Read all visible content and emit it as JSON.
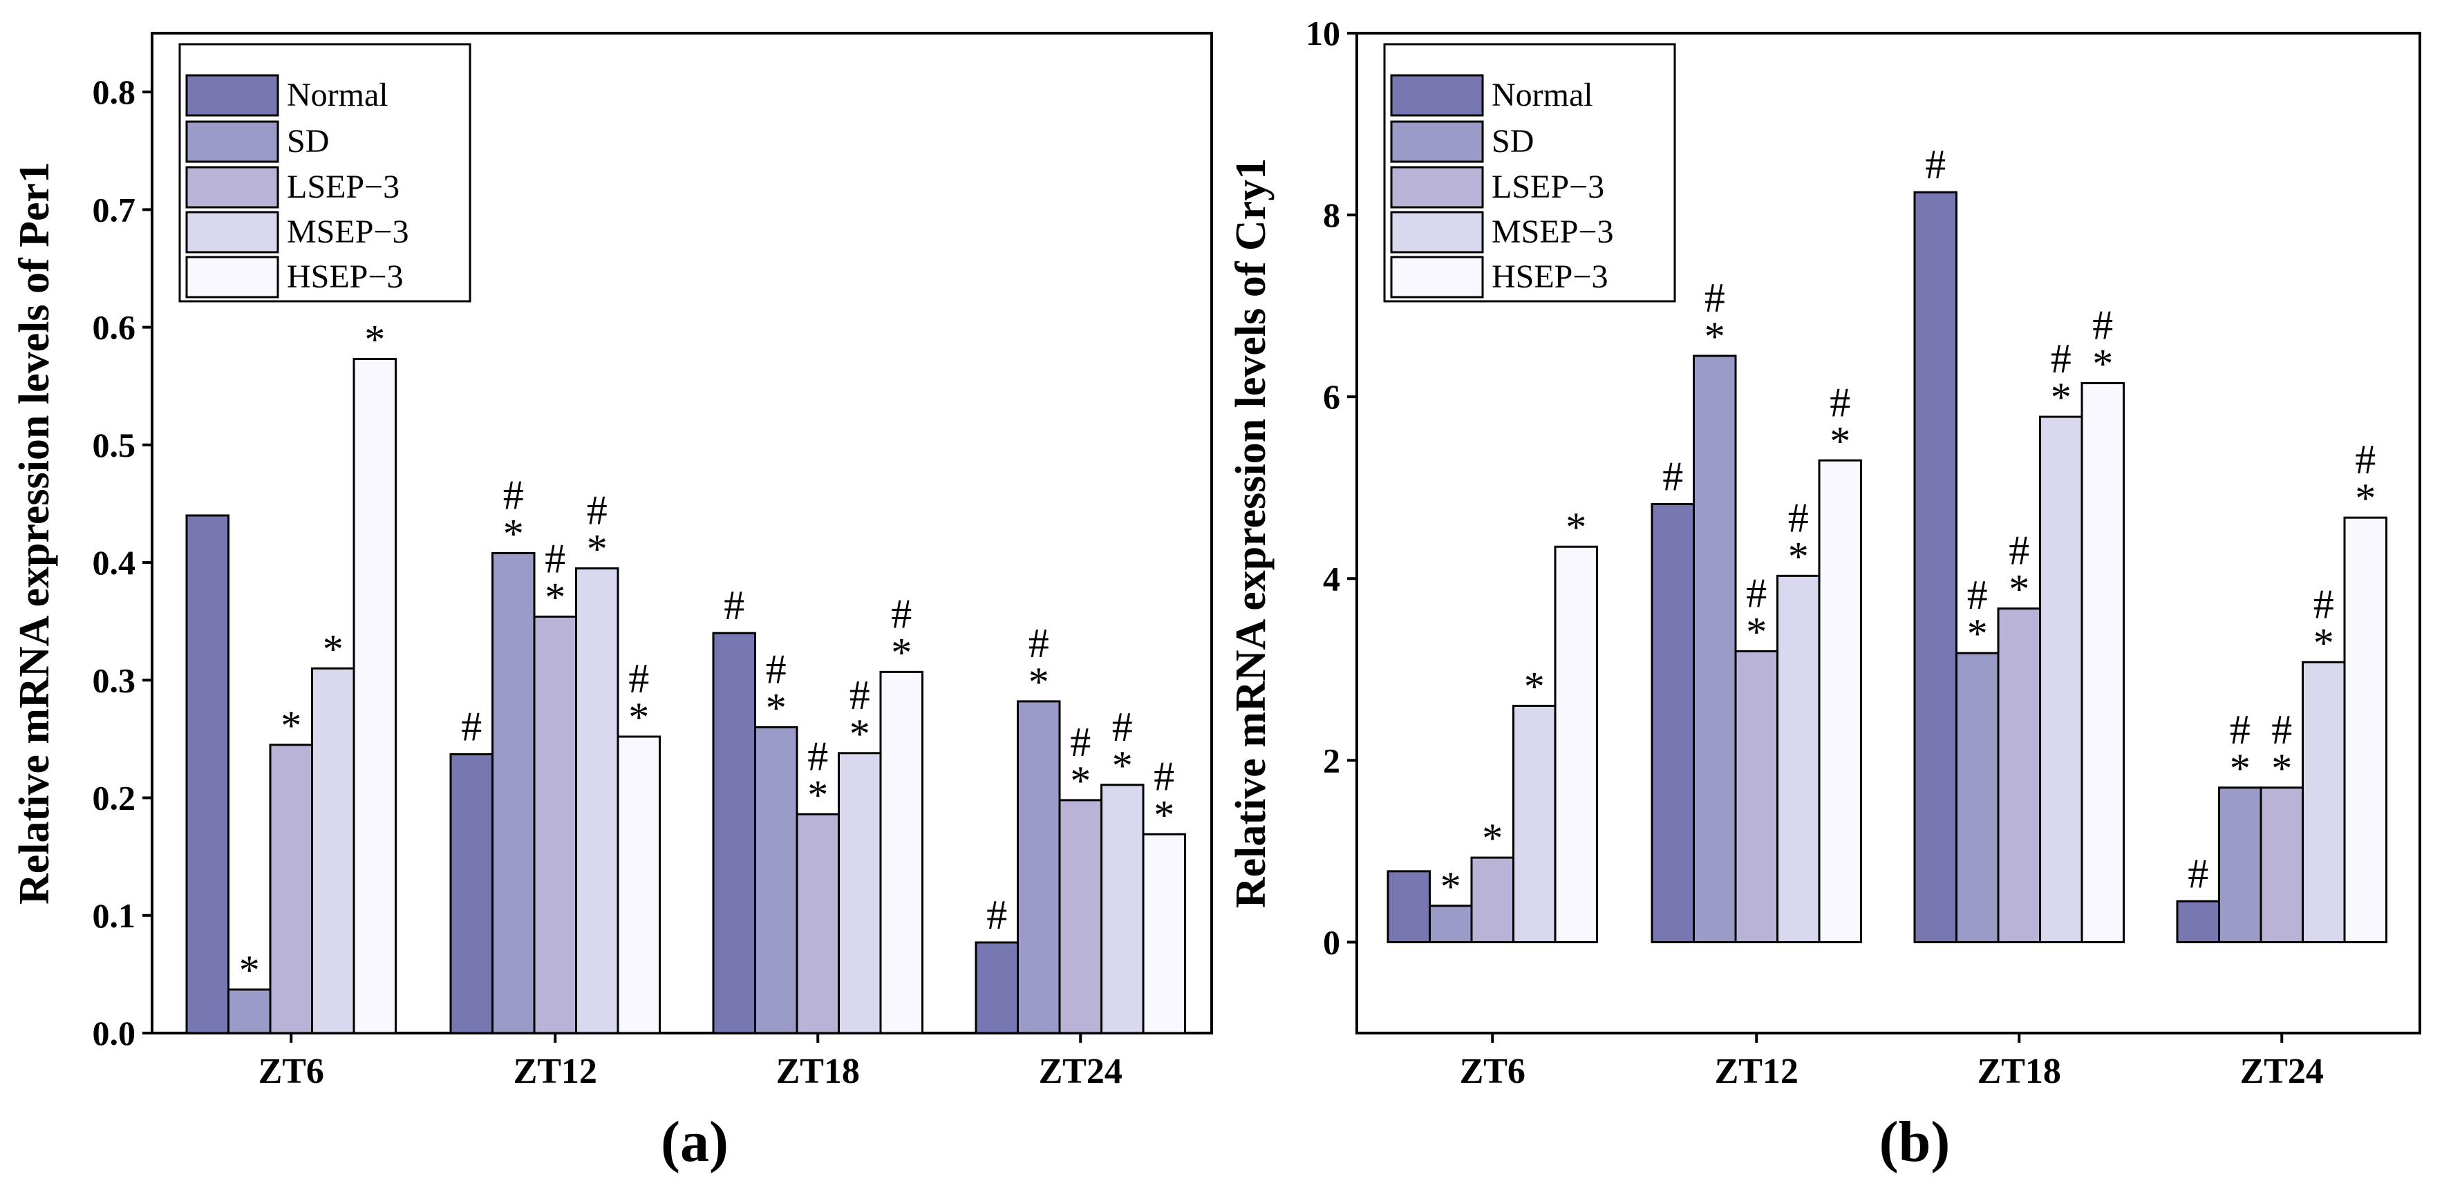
{
  "legend": [
    "Normal",
    "SD",
    "LSEP−3",
    "MSEP−3",
    "HSEP−3"
  ],
  "colors": [
    "#7777b1",
    "#9b9bc8",
    "#bab3d8",
    "#d8d8ee",
    "#f8f8fe"
  ],
  "chart_data": [
    {
      "type": "bar",
      "panel_label": "(a)",
      "ylabel": "Relative mRNA expression levels of Per1",
      "categories": [
        "ZT6",
        "ZT12",
        "ZT18",
        "ZT24"
      ],
      "yticks": [
        "0.0",
        "0.1",
        "0.2",
        "0.3",
        "0.4",
        "0.5",
        "0.6",
        "0.7",
        "0.8"
      ],
      "ylim": [
        0,
        0.85
      ],
      "series": [
        {
          "name": "Normal",
          "values": [
            0.44,
            0.237,
            0.34,
            0.077
          ],
          "marks": [
            "",
            "#",
            "#",
            "#"
          ]
        },
        {
          "name": "SD",
          "values": [
            0.037,
            0.408,
            0.26,
            0.282
          ],
          "marks": [
            "*",
            "#*",
            "#*",
            "#*"
          ]
        },
        {
          "name": "LSEP−3",
          "values": [
            0.245,
            0.354,
            0.186,
            0.198
          ],
          "marks": [
            "*",
            "#*",
            "#*",
            "#*"
          ]
        },
        {
          "name": "MSEP−3",
          "values": [
            0.31,
            0.395,
            0.238,
            0.211
          ],
          "marks": [
            "*",
            "#*",
            "#*",
            "#*"
          ]
        },
        {
          "name": "HSEP−3",
          "values": [
            0.573,
            0.252,
            0.307,
            0.169
          ],
          "marks": [
            "*",
            "#*",
            "#*",
            "#*"
          ]
        }
      ]
    },
    {
      "type": "bar",
      "panel_label": "(b)",
      "ylabel": "Relative mRNA expression levels of Cry1",
      "categories": [
        "ZT6",
        "ZT12",
        "ZT18",
        "ZT24"
      ],
      "yticks": [
        "0",
        "2",
        "4",
        "6",
        "8",
        "10"
      ],
      "ylim": [
        -1,
        10
      ],
      "series": [
        {
          "name": "Normal",
          "values": [
            0.78,
            4.82,
            8.25,
            0.45
          ],
          "marks": [
            "",
            "#",
            "#",
            "#"
          ]
        },
        {
          "name": "SD",
          "values": [
            0.4,
            6.45,
            3.18,
            1.7
          ],
          "marks": [
            "*",
            "#*",
            "#*",
            "#*"
          ]
        },
        {
          "name": "LSEP−3",
          "values": [
            0.93,
            3.2,
            3.67,
            1.7
          ],
          "marks": [
            "*",
            "#*",
            "#*",
            "#*"
          ]
        },
        {
          "name": "MSEP−3",
          "values": [
            2.6,
            4.03,
            5.78,
            3.08
          ],
          "marks": [
            "*",
            "#*",
            "#*",
            "#*"
          ]
        },
        {
          "name": "HSEP−3",
          "values": [
            4.35,
            5.3,
            6.15,
            4.67
          ],
          "marks": [
            "*",
            "#*",
            "#*",
            "#*"
          ]
        }
      ]
    }
  ]
}
